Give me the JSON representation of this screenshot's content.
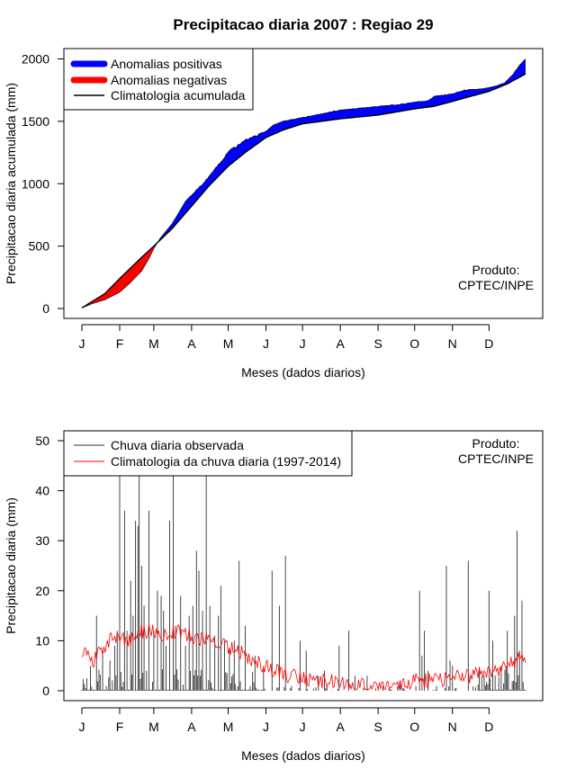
{
  "title": "Precipitacao diaria 2007 : Regiao 29",
  "colors": {
    "positive": "#0000ff",
    "negative": "#ff0000",
    "climatology_line": "#000000",
    "observed_line": "#333333",
    "climatology_daily": "#ff0000"
  },
  "product_note": {
    "line1": "Produto:",
    "line2": "CPTEC/INPE"
  },
  "month_ticks": [
    "J",
    "F",
    "M",
    "A",
    "M",
    "J",
    "J",
    "A",
    "S",
    "O",
    "N",
    "D"
  ],
  "month_tick_days": [
    1,
    32,
    60,
    91,
    121,
    152,
    182,
    213,
    244,
    274,
    305,
    335
  ],
  "chart_data": [
    {
      "type": "area",
      "title": "Precipitacao diaria 2007 : Regiao 29",
      "xlabel": "Meses (dados diarios)",
      "ylabel": "Precipitacao diaria acumulada (mm)",
      "xlim": [
        1,
        365
      ],
      "ylim": [
        0,
        2000
      ],
      "yticks": [
        0,
        500,
        1000,
        1500,
        2000
      ],
      "legend": {
        "position": "top-left",
        "entries": [
          "Anomalias positivas",
          "Anomalias negativas",
          "Climatologia acumulada"
        ]
      },
      "climatology_knots": [
        [
          1,
          5
        ],
        [
          20,
          120
        ],
        [
          32,
          240
        ],
        [
          50,
          410
        ],
        [
          60,
          500
        ],
        [
          75,
          640
        ],
        [
          91,
          820
        ],
        [
          105,
          980
        ],
        [
          121,
          1140
        ],
        [
          135,
          1250
        ],
        [
          152,
          1370
        ],
        [
          166,
          1430
        ],
        [
          182,
          1480
        ],
        [
          213,
          1520
        ],
        [
          244,
          1550
        ],
        [
          274,
          1600
        ],
        [
          290,
          1620
        ],
        [
          305,
          1660
        ],
        [
          320,
          1700
        ],
        [
          335,
          1740
        ],
        [
          350,
          1800
        ],
        [
          365,
          1880
        ]
      ],
      "observed_knots": [
        [
          1,
          5
        ],
        [
          10,
          40
        ],
        [
          20,
          70
        ],
        [
          32,
          130
        ],
        [
          40,
          200
        ],
        [
          50,
          300
        ],
        [
          56,
          400
        ],
        [
          60,
          480
        ],
        [
          65,
          560
        ],
        [
          75,
          680
        ],
        [
          80,
          760
        ],
        [
          86,
          860
        ],
        [
          91,
          910
        ],
        [
          96,
          960
        ],
        [
          105,
          1050
        ],
        [
          112,
          1140
        ],
        [
          118,
          1210
        ],
        [
          121,
          1260
        ],
        [
          128,
          1300
        ],
        [
          135,
          1350
        ],
        [
          145,
          1390
        ],
        [
          152,
          1420
        ],
        [
          158,
          1470
        ],
        [
          166,
          1500
        ],
        [
          182,
          1530
        ],
        [
          213,
          1590
        ],
        [
          244,
          1620
        ],
        [
          262,
          1635
        ],
        [
          274,
          1655
        ],
        [
          285,
          1665
        ],
        [
          290,
          1700
        ],
        [
          305,
          1720
        ],
        [
          315,
          1750
        ],
        [
          330,
          1760
        ],
        [
          340,
          1780
        ],
        [
          348,
          1810
        ],
        [
          355,
          1880
        ],
        [
          360,
          1950
        ],
        [
          365,
          2000
        ]
      ]
    },
    {
      "type": "bar",
      "title": "",
      "xlabel": "Meses (dados diarios)",
      "ylabel": "Precipitacao diaria (mm)",
      "xlim": [
        1,
        365
      ],
      "ylim": [
        0,
        50
      ],
      "yticks": [
        0,
        10,
        20,
        30,
        40,
        50
      ],
      "legend": {
        "position": "top-left",
        "entries": [
          "Chuva diaria observada",
          "Climatologia da chuva diaria (1997-2014)"
        ]
      },
      "observed_peaks": [
        [
          8,
          5
        ],
        [
          13,
          15
        ],
        [
          18,
          8
        ],
        [
          24,
          6
        ],
        [
          28,
          9
        ],
        [
          30,
          12
        ],
        [
          32,
          43
        ],
        [
          36,
          36
        ],
        [
          38,
          12
        ],
        [
          41,
          22
        ],
        [
          43,
          15
        ],
        [
          45,
          34
        ],
        [
          47,
          33
        ],
        [
          48,
          43
        ],
        [
          50,
          25
        ],
        [
          52,
          17
        ],
        [
          56,
          36
        ],
        [
          60,
          12
        ],
        [
          63,
          20
        ],
        [
          66,
          19
        ],
        [
          68,
          16
        ],
        [
          70,
          9
        ],
        [
          73,
          34
        ],
        [
          76,
          43
        ],
        [
          78,
          13
        ],
        [
          82,
          19
        ],
        [
          86,
          9
        ],
        [
          89,
          15
        ],
        [
          92,
          17
        ],
        [
          95,
          28
        ],
        [
          97,
          24
        ],
        [
          100,
          16
        ],
        [
          103,
          43
        ],
        [
          106,
          17
        ],
        [
          110,
          11
        ],
        [
          113,
          15
        ],
        [
          115,
          21
        ],
        [
          118,
          10
        ],
        [
          122,
          8
        ],
        [
          126,
          10
        ],
        [
          130,
          26
        ],
        [
          135,
          13
        ],
        [
          143,
          7
        ],
        [
          150,
          5
        ],
        [
          157,
          24
        ],
        [
          163,
          17
        ],
        [
          168,
          27
        ],
        [
          180,
          10
        ],
        [
          185,
          8
        ],
        [
          195,
          3
        ],
        [
          200,
          4
        ],
        [
          212,
          9
        ],
        [
          220,
          12
        ],
        [
          225,
          3
        ],
        [
          235,
          3
        ],
        [
          248,
          1
        ],
        [
          262,
          2
        ],
        [
          278,
          20
        ],
        [
          280,
          7
        ],
        [
          282,
          12
        ],
        [
          285,
          4
        ],
        [
          300,
          25
        ],
        [
          303,
          6
        ],
        [
          305,
          5
        ],
        [
          318,
          26
        ],
        [
          327,
          4
        ],
        [
          335,
          20
        ],
        [
          338,
          10
        ],
        [
          345,
          5
        ],
        [
          350,
          12
        ],
        [
          356,
          15
        ],
        [
          358,
          32
        ],
        [
          360,
          8
        ],
        [
          362,
          18
        ]
      ],
      "climatology_knots": [
        [
          1,
          8
        ],
        [
          10,
          6
        ],
        [
          20,
          9
        ],
        [
          30,
          11
        ],
        [
          40,
          10
        ],
        [
          50,
          12
        ],
        [
          60,
          12
        ],
        [
          70,
          11
        ],
        [
          80,
          12
        ],
        [
          90,
          11
        ],
        [
          100,
          10
        ],
        [
          110,
          10
        ],
        [
          120,
          9
        ],
        [
          130,
          8
        ],
        [
          140,
          6
        ],
        [
          152,
          5
        ],
        [
          160,
          4
        ],
        [
          170,
          3
        ],
        [
          182,
          2.5
        ],
        [
          190,
          2
        ],
        [
          200,
          2
        ],
        [
          213,
          1.5
        ],
        [
          225,
          1
        ],
        [
          244,
          1
        ],
        [
          260,
          1
        ],
        [
          274,
          2
        ],
        [
          290,
          2
        ],
        [
          305,
          2.5
        ],
        [
          320,
          3
        ],
        [
          335,
          4
        ],
        [
          345,
          4.5
        ],
        [
          355,
          6
        ],
        [
          365,
          7
        ]
      ]
    }
  ]
}
